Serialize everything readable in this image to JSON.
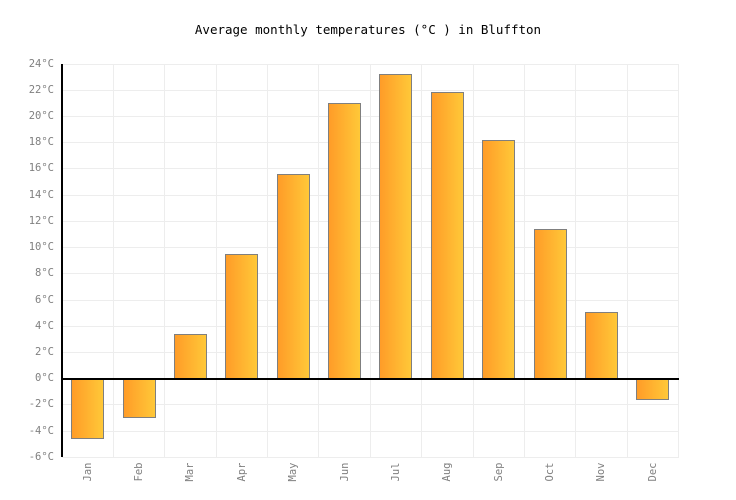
{
  "chart_data": {
    "type": "bar",
    "title": "Average monthly temperatures (°C ) in Bluffton",
    "categories": [
      "Jan",
      "Feb",
      "Mar",
      "Apr",
      "May",
      "Jun",
      "Jul",
      "Aug",
      "Sep",
      "Oct",
      "Nov",
      "Dec"
    ],
    "values": [
      -4.6,
      -3,
      3.4,
      9.5,
      15.6,
      21,
      23.2,
      21.9,
      18.2,
      11.4,
      5.1,
      -1.6
    ],
    "unit": "°C",
    "ylabel": "",
    "xlabel": "",
    "ylim": [
      -6,
      24
    ],
    "ytick_step": 2,
    "y_tick_labels": [
      "24°C",
      "22°C",
      "20°C",
      "18°C",
      "16°C",
      "14°C",
      "12°C",
      "10°C",
      "8°C",
      "6°C",
      "4°C",
      "2°C",
      "0°C",
      "-2°C",
      "-4°C",
      "-6°C"
    ],
    "grid": true,
    "legend": "none",
    "colors": {
      "bar_gradient_left": "#ff9c28",
      "bar_gradient_right": "#ffc838",
      "bar_border": "#7f7f7f",
      "axis_line": "#000000",
      "gridline": "#ededed",
      "tick_label": "#808080",
      "title_text": "#000000",
      "background": "#ffffff"
    }
  }
}
